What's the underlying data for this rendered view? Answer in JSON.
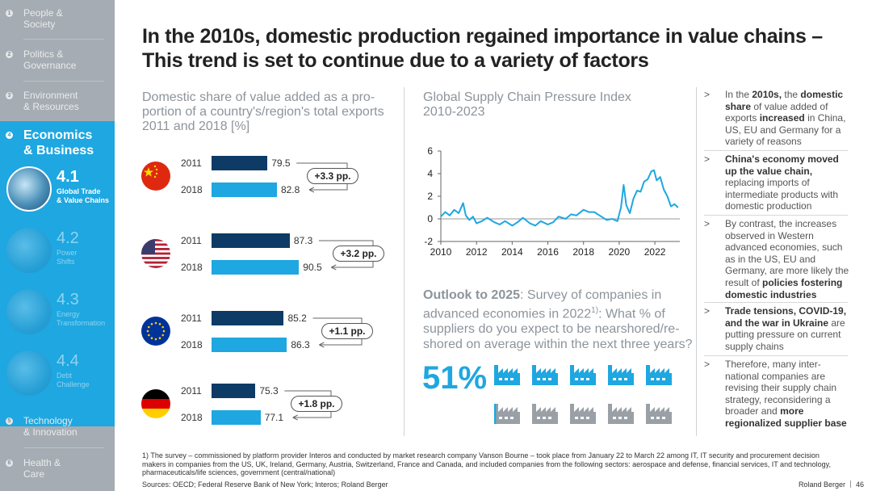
{
  "sidebar": {
    "items": [
      {
        "num": "1",
        "label": "People &\nSociety"
      },
      {
        "num": "2",
        "label": "Politics &\nGovernance"
      },
      {
        "num": "3",
        "label": "Environment\n& Resources"
      },
      {
        "num": "4",
        "label": "Economics\n& Business"
      },
      {
        "num": "5",
        "label": "Technology\n& Innovation"
      },
      {
        "num": "6",
        "label": "Health &\nCare"
      }
    ],
    "subitems": [
      {
        "num": "4.1",
        "label": "Global Trade\n& Value Chains"
      },
      {
        "num": "4.2",
        "label": "Power\nShifts"
      },
      {
        "num": "4.3",
        "label": "Energy\nTransformation"
      },
      {
        "num": "4.4",
        "label": "Debt\nChallenge"
      }
    ]
  },
  "title": "In the 2010s, domestic production regained importance in value chains –\nThis trend is set to continue due to a variety of factors",
  "left_panel": {
    "title": "Domestic share of value added as a pro-\nportion of a country's/region's total exports\n2011 and 2018 [%]",
    "countries": [
      {
        "flag": "china-flag-icon",
        "y2011": "2011",
        "v2011": "79.5",
        "y2018": "2018",
        "v2018": "82.8",
        "delta": "+3.3 pp."
      },
      {
        "flag": "us-flag-icon",
        "y2011": "2011",
        "v2011": "87.3",
        "y2018": "2018",
        "v2018": "90.5",
        "delta": "+3.2 pp."
      },
      {
        "flag": "eu-flag-icon",
        "y2011": "2011",
        "v2011": "85.2",
        "y2018": "2018",
        "v2018": "86.3",
        "delta": "+1.1 pp."
      },
      {
        "flag": "germany-flag-icon",
        "y2011": "2011",
        "v2011": "75.3",
        "y2018": "2018",
        "v2018": "77.1",
        "delta": "+1.8 pp."
      }
    ]
  },
  "chart_data": {
    "type": "line",
    "title": "Global Supply Chain Pressure Index\n2010-2023",
    "xlabel": "",
    "ylabel": "",
    "ylim": [
      -2,
      6
    ],
    "xlim": [
      2010,
      2023.4
    ],
    "yticks": [
      "6",
      "4",
      "2",
      "0",
      "-2"
    ],
    "xticks": [
      "2010",
      "2012",
      "2014",
      "2016",
      "2018",
      "2020",
      "2022"
    ],
    "series": [
      {
        "name": "GSCPI",
        "x": [
          2010.0,
          2010.25,
          2010.5,
          2010.75,
          2011.0,
          2011.25,
          2011.4,
          2011.6,
          2011.8,
          2012.0,
          2012.3,
          2012.6,
          2013.0,
          2013.3,
          2013.6,
          2014.0,
          2014.3,
          2014.6,
          2015.0,
          2015.3,
          2015.6,
          2016.0,
          2016.3,
          2016.6,
          2017.0,
          2017.3,
          2017.6,
          2018.0,
          2018.3,
          2018.6,
          2019.0,
          2019.3,
          2019.6,
          2019.9,
          2020.1,
          2020.25,
          2020.4,
          2020.6,
          2020.8,
          2021.0,
          2021.2,
          2021.4,
          2021.6,
          2021.8,
          2021.95,
          2022.1,
          2022.3,
          2022.5,
          2022.7,
          2022.9,
          2023.1,
          2023.3
        ],
        "y": [
          0.2,
          0.6,
          0.3,
          0.8,
          0.5,
          1.4,
          0.3,
          -0.1,
          0.2,
          -0.4,
          -0.2,
          0.1,
          -0.3,
          -0.5,
          -0.2,
          -0.6,
          -0.3,
          0.1,
          -0.4,
          -0.6,
          -0.2,
          -0.5,
          -0.3,
          0.2,
          0.0,
          0.4,
          0.3,
          0.8,
          0.6,
          0.6,
          0.2,
          -0.1,
          0.0,
          -0.2,
          1.0,
          3.0,
          1.2,
          0.5,
          1.8,
          2.5,
          2.4,
          3.3,
          3.5,
          4.2,
          4.3,
          3.4,
          3.7,
          2.6,
          2.0,
          1.1,
          1.3,
          1.0
        ]
      }
    ]
  },
  "outlook": {
    "bold": "Outlook to 2025",
    "text1": ": Survey of companies in advanced economies in 2022",
    "sup": "1)",
    "text2": ": What % of suppliers do you expect to be nearshored/re-shored on average within the next three years?",
    "percent": "51%",
    "factory_count": 10,
    "highlighted_fraction": 0.51,
    "colors": {
      "highlight": "#1ea7e0",
      "rest": "#9aa0a6"
    }
  },
  "bullets": [
    {
      "parts": [
        [
          "In the ",
          false
        ],
        [
          "2010s,",
          true
        ],
        [
          " the ",
          false
        ],
        [
          "domestic share",
          true
        ],
        [
          " of value added of exports ",
          false
        ],
        [
          "increased",
          true
        ],
        [
          " in China, US, EU and Germany for a variety of reasons",
          false
        ]
      ]
    },
    {
      "parts": [
        [
          "China's economy moved up the value chain,",
          true
        ],
        [
          " replacing imports of intermediate products with domestic production",
          false
        ]
      ]
    },
    {
      "parts": [
        [
          "By contrast, the increases observed in Western advanced economies, such as in the US, EU and Germany, are more likely the result of ",
          false
        ],
        [
          "policies fostering domestic industries",
          true
        ]
      ]
    },
    {
      "parts": [
        [
          "Trade tensions, COVID-19, and the war in Ukraine",
          true
        ],
        [
          " are putting pressure on current supply chains",
          false
        ]
      ]
    },
    {
      "parts": [
        [
          "Therefore, many inter-national companies are revising their supply chain strategy, reconsidering a broader and ",
          false
        ],
        [
          "more regionalized supplier base",
          true
        ]
      ]
    }
  ],
  "footnote": "1) The survey – commissioned by platform provider Interos and conducted by market research company Vanson Bourne – took place from January 22 to March 22 among IT, IT security and procurement decision makers in companies from the US, UK, Ireland, Germany, Austria, Switzerland, France and Canada, and included companies from the following sectors: aerospace and defense, financial services, IT and technology, pharmaceuticals/life sciences, government (central/national)",
  "sources": "Sources: OECD; Federal Reserve Bank of New York; Interos; Roland Berger",
  "brand": "Roland Berger",
  "page_number": "46",
  "colors": {
    "accent": "#1ea7e0",
    "bar2011": "#0d3b66",
    "bar2018": "#1ea7e0",
    "sidebar": "#a6acb3"
  }
}
